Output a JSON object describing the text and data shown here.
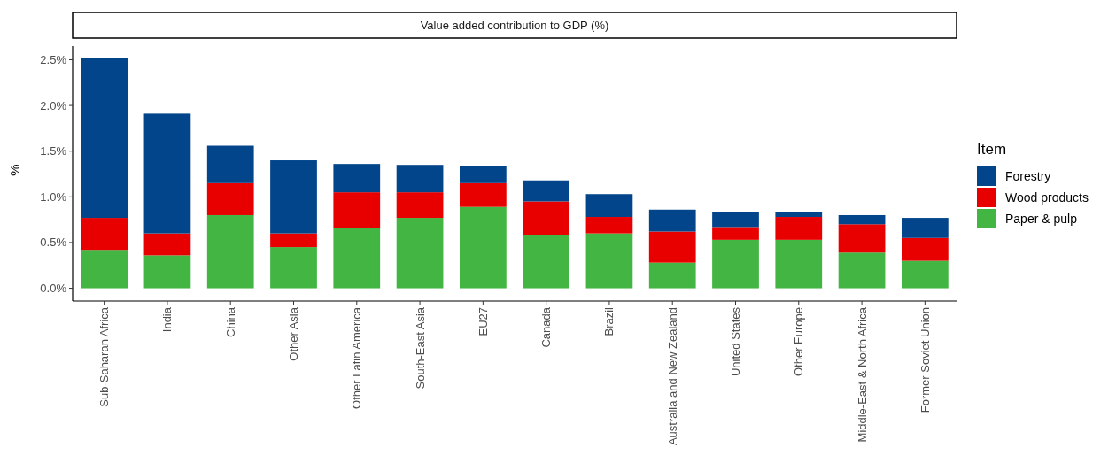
{
  "chart_data": {
    "type": "bar",
    "title": "Value added contribution to GDP (%)",
    "ylabel": "%",
    "legend_title": "Item",
    "stacked": true,
    "legend": "right",
    "grid": false,
    "categories": [
      "Sub-Saharan Africa",
      "India",
      "China",
      "Other Asia",
      "Other Latin America",
      "South-East Asia",
      "EU27",
      "Canada",
      "Brazil",
      "Australia and New Zealand",
      "United States",
      "Other Europe",
      "Middle-East & North Africa",
      "Former Soviet Union"
    ],
    "series": [
      {
        "name": "Paper & pulp",
        "color": "#43b543",
        "values": [
          0.42,
          0.36,
          0.8,
          0.45,
          0.66,
          0.77,
          0.89,
          0.58,
          0.6,
          0.28,
          0.53,
          0.53,
          0.39,
          0.3
        ]
      },
      {
        "name": "Wood products",
        "color": "#e80000",
        "values": [
          0.35,
          0.24,
          0.35,
          0.15,
          0.39,
          0.28,
          0.26,
          0.37,
          0.18,
          0.34,
          0.14,
          0.25,
          0.31,
          0.25
        ]
      },
      {
        "name": "Forestry",
        "color": "#03458b",
        "values": [
          1.75,
          1.31,
          0.41,
          0.8,
          0.31,
          0.3,
          0.19,
          0.23,
          0.25,
          0.24,
          0.16,
          0.05,
          0.1,
          0.22
        ]
      }
    ],
    "ylim": [
      -0.14,
      2.65
    ],
    "yticks": [
      {
        "value": 0,
        "label": "0.0%"
      },
      {
        "value": 0.5,
        "label": "0.5%"
      },
      {
        "value": 1,
        "label": "1.0%"
      },
      {
        "value": 1.5,
        "label": "1.5%"
      },
      {
        "value": 2,
        "label": "2.0%"
      },
      {
        "value": 2.5,
        "label": "2.5%"
      }
    ]
  }
}
